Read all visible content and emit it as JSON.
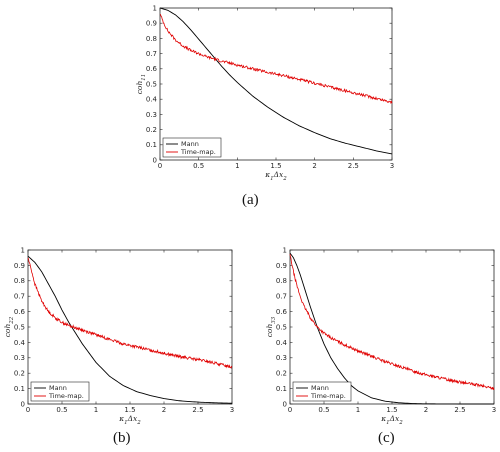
{
  "captions": [
    "(a)",
    "(b)",
    "(c)"
  ],
  "chart_data": [
    {
      "type": "line",
      "ylabel": "coh11",
      "xlabel": "κ1Δx2",
      "xlim": [
        0,
        3
      ],
      "ylim": [
        0,
        1
      ],
      "xticks": [
        "0",
        "0.5",
        "1",
        "1.5",
        "2",
        "2.5",
        "3"
      ],
      "yticks": [
        "0",
        "0.1",
        "0.2",
        "0.3",
        "0.4",
        "0.5",
        "0.6",
        "0.7",
        "0.8",
        "0.9",
        "1"
      ],
      "legend_position": "bottom-left",
      "grid": false,
      "series": [
        {
          "name": "Mann",
          "color": "#000000",
          "x": [
            0,
            0.1,
            0.2,
            0.3,
            0.4,
            0.5,
            0.6,
            0.7,
            0.8,
            0.9,
            1.0,
            1.2,
            1.4,
            1.6,
            1.8,
            2.0,
            2.2,
            2.4,
            2.6,
            2.8,
            3.0
          ],
          "y": [
            1.0,
            0.985,
            0.955,
            0.91,
            0.855,
            0.795,
            0.735,
            0.675,
            0.615,
            0.56,
            0.51,
            0.42,
            0.345,
            0.28,
            0.225,
            0.18,
            0.14,
            0.11,
            0.085,
            0.06,
            0.04
          ]
        },
        {
          "name": "Time-map.",
          "color": "#e00000",
          "x": [
            0,
            0.05,
            0.1,
            0.2,
            0.3,
            0.4,
            0.5,
            0.6,
            0.7,
            0.8,
            1.0,
            1.2,
            1.4,
            1.6,
            1.8,
            2.0,
            2.2,
            2.4,
            2.6,
            2.8,
            3.0
          ],
          "y": [
            0.96,
            0.9,
            0.85,
            0.79,
            0.75,
            0.72,
            0.7,
            0.68,
            0.665,
            0.65,
            0.625,
            0.6,
            0.575,
            0.555,
            0.53,
            0.505,
            0.48,
            0.455,
            0.43,
            0.405,
            0.38
          ]
        }
      ]
    },
    {
      "type": "line",
      "ylabel": "coh22",
      "xlabel": "κ1Δx2",
      "xlim": [
        0,
        3
      ],
      "ylim": [
        0,
        1
      ],
      "xticks": [
        "0",
        "0.5",
        "1",
        "1.5",
        "2",
        "2.5",
        "3"
      ],
      "yticks": [
        "0",
        "0.1",
        "0.2",
        "0.3",
        "0.4",
        "0.5",
        "0.6",
        "0.7",
        "0.8",
        "0.9",
        "1"
      ],
      "legend_position": "bottom-left",
      "grid": false,
      "series": [
        {
          "name": "Mann",
          "color": "#000000",
          "x": [
            0,
            0.1,
            0.2,
            0.3,
            0.4,
            0.5,
            0.6,
            0.7,
            0.8,
            0.9,
            1.0,
            1.2,
            1.4,
            1.6,
            1.8,
            2.0,
            2.2,
            2.4,
            2.6,
            2.8,
            3.0
          ],
          "y": [
            0.96,
            0.92,
            0.86,
            0.78,
            0.7,
            0.61,
            0.53,
            0.46,
            0.39,
            0.33,
            0.27,
            0.18,
            0.12,
            0.08,
            0.055,
            0.035,
            0.022,
            0.015,
            0.01,
            0.007,
            0.005
          ]
        },
        {
          "name": "Time-map.",
          "color": "#e00000",
          "x": [
            0,
            0.05,
            0.1,
            0.2,
            0.3,
            0.4,
            0.5,
            0.6,
            0.8,
            1.0,
            1.2,
            1.4,
            1.6,
            1.8,
            2.0,
            2.2,
            2.4,
            2.6,
            2.8,
            3.0
          ],
          "y": [
            0.95,
            0.87,
            0.78,
            0.67,
            0.6,
            0.56,
            0.53,
            0.51,
            0.48,
            0.45,
            0.42,
            0.39,
            0.37,
            0.35,
            0.33,
            0.31,
            0.295,
            0.28,
            0.26,
            0.24
          ]
        }
      ]
    },
    {
      "type": "line",
      "ylabel": "coh33",
      "xlabel": "κ1Δx2",
      "xlim": [
        0,
        3
      ],
      "ylim": [
        0,
        1
      ],
      "xticks": [
        "0",
        "0.5",
        "1",
        "1.5",
        "2",
        "2.5",
        "3"
      ],
      "yticks": [
        "0",
        "0.1",
        "0.2",
        "0.3",
        "0.4",
        "0.5",
        "0.6",
        "0.7",
        "0.8",
        "0.9",
        "1"
      ],
      "legend_position": "bottom-left",
      "grid": false,
      "series": [
        {
          "name": "Mann",
          "color": "#000000",
          "x": [
            0,
            0.05,
            0.1,
            0.15,
            0.2,
            0.3,
            0.4,
            0.5,
            0.6,
            0.7,
            0.8,
            0.9,
            1.0,
            1.2,
            1.4,
            1.6,
            1.8,
            2.0,
            2.5,
            3.0
          ],
          "y": [
            0.98,
            0.95,
            0.9,
            0.84,
            0.77,
            0.63,
            0.5,
            0.39,
            0.3,
            0.23,
            0.17,
            0.12,
            0.085,
            0.04,
            0.018,
            0.008,
            0.003,
            0.001,
            0.0,
            0.0
          ]
        },
        {
          "name": "Time-map.",
          "color": "#e00000",
          "x": [
            0,
            0.05,
            0.1,
            0.15,
            0.2,
            0.3,
            0.4,
            0.5,
            0.6,
            0.8,
            1.0,
            1.2,
            1.4,
            1.6,
            1.8,
            2.0,
            2.2,
            2.4,
            2.6,
            2.8,
            3.0
          ],
          "y": [
            0.97,
            0.86,
            0.77,
            0.7,
            0.64,
            0.56,
            0.5,
            0.46,
            0.43,
            0.385,
            0.345,
            0.31,
            0.275,
            0.245,
            0.215,
            0.19,
            0.17,
            0.15,
            0.135,
            0.12,
            0.1
          ]
        }
      ]
    }
  ]
}
